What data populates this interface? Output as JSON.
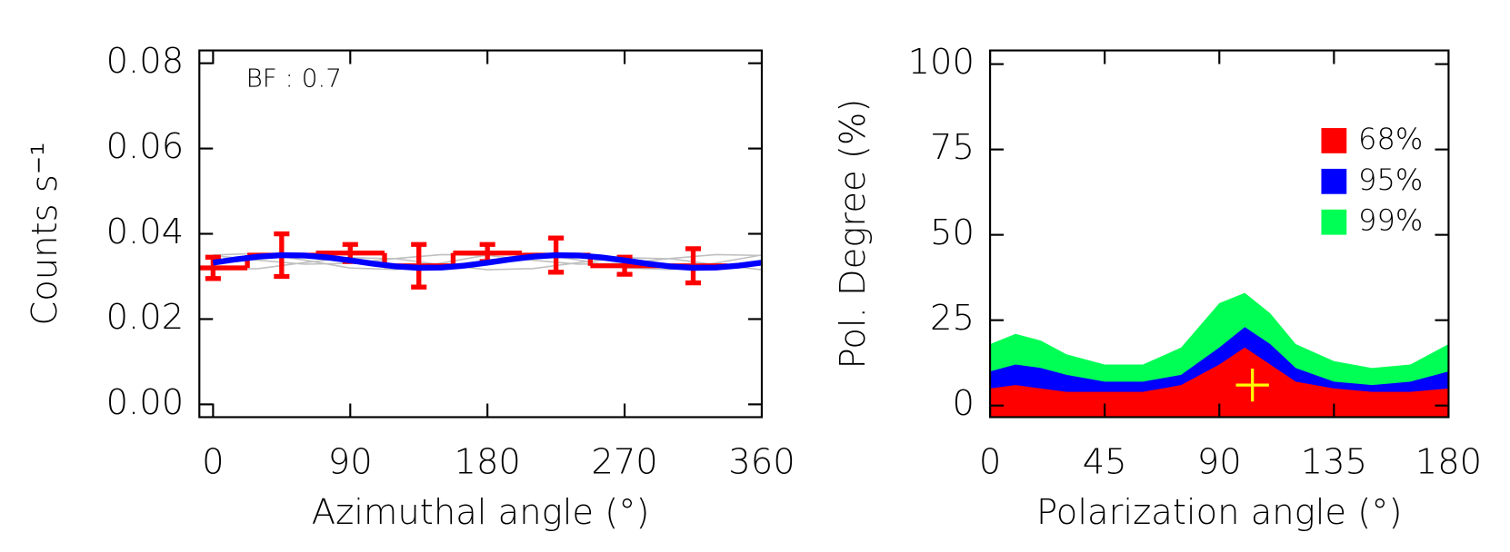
{
  "chart_data": [
    {
      "type": "step-errorbar",
      "xlabel": "Azimuthal angle (°)",
      "ylabel": "Counts s⁻¹",
      "annotation": "BF : 0.7",
      "xlim": [
        -9,
        360
      ],
      "xticks": [
        0,
        90,
        180,
        270,
        360
      ],
      "ylim": [
        -0.003,
        0.083
      ],
      "yticks": [
        {
          "value": 0,
          "label": "0.00"
        },
        {
          "value": 0.02,
          "label": "0.02"
        },
        {
          "value": 0.04,
          "label": "0.04"
        },
        {
          "value": 0.06,
          "label": "0.06"
        },
        {
          "value": 0.08,
          "label": "0.08"
        }
      ],
      "series": [
        {
          "type": "line",
          "color": "#c0c0c0",
          "x": [
            0,
            30,
            60,
            90,
            120,
            150,
            180,
            210,
            240,
            270,
            300,
            330,
            360
          ],
          "values": [
            0.03503,
            0.03538,
            0.03385,
            0.03197,
            0.03162,
            0.03315,
            0.03503,
            0.03538,
            0.03385,
            0.03197,
            0.03162,
            0.03315,
            0.03503
          ]
        },
        {
          "type": "line",
          "color": "#c0c0c0",
          "x": [
            0,
            30,
            60,
            90,
            120,
            150,
            180,
            210,
            240,
            270,
            300,
            330,
            360
          ],
          "values": [
            0.03159,
            0.03185,
            0.03326,
            0.03441,
            0.03415,
            0.03274,
            0.03159,
            0.03185,
            0.03326,
            0.03441,
            0.03415,
            0.03274,
            0.03159
          ]
        },
        {
          "type": "line",
          "color": "#c0c0c0",
          "x": [
            0,
            30,
            60,
            90,
            120,
            150,
            180,
            210,
            240,
            270,
            300,
            330,
            360
          ],
          "values": [
            0.03492,
            0.03379,
            0.03287,
            0.03308,
            0.03421,
            0.03513,
            0.03492,
            0.03379,
            0.03287,
            0.03308,
            0.03421,
            0.03513,
            0.03492
          ]
        },
        {
          "type": "step-errorbar",
          "color": "#ff0000",
          "x": [
            0,
            45,
            90,
            135,
            180,
            225,
            270,
            315
          ],
          "values": [
            0.032,
            0.035,
            0.0355,
            0.0325,
            0.0355,
            0.035,
            0.0325,
            0.0325
          ],
          "errors": [
            0.0025,
            0.005,
            0.002,
            0.005,
            0.002,
            0.004,
            0.002,
            0.004
          ]
        },
        {
          "type": "line",
          "color": "#0000ff",
          "x": [
            0,
            15,
            30,
            45,
            60,
            75,
            90,
            105,
            120,
            135,
            150,
            165,
            180,
            195,
            210,
            225,
            240,
            255,
            270,
            285,
            300,
            315,
            330,
            345,
            360
          ],
          "values": [
            0.03324,
            0.03401,
            0.03465,
            0.03498,
            0.03491,
            0.03446,
            0.03376,
            0.03299,
            0.03235,
            0.03202,
            0.03209,
            0.03254,
            0.03324,
            0.03401,
            0.03465,
            0.03498,
            0.03491,
            0.03446,
            0.03376,
            0.03299,
            0.03235,
            0.03202,
            0.03209,
            0.03254,
            0.03324
          ]
        }
      ]
    },
    {
      "type": "area",
      "xlabel": "Polarization angle (°)",
      "ylabel": "Pol. Degree (%)",
      "xlim": [
        0,
        180
      ],
      "xticks": [
        0,
        45,
        90,
        135,
        180
      ],
      "ylim": [
        -3.4,
        104
      ],
      "yticks": [
        0,
        25,
        50,
        75,
        100
      ],
      "legend": "upper right",
      "x": [
        0,
        10,
        20,
        30,
        45,
        60,
        75,
        90,
        100,
        110,
        120,
        135,
        150,
        165,
        180
      ],
      "series": [
        {
          "name": "68%",
          "color": "#ff0000",
          "values": [
            5,
            6,
            5,
            4,
            4,
            4,
            6,
            12,
            17,
            12,
            7,
            5,
            4,
            4,
            5
          ]
        },
        {
          "name": "95%",
          "color": "#0000ff",
          "values": [
            10,
            12,
            11,
            9,
            7,
            7,
            9,
            17,
            23,
            18,
            11,
            7,
            6,
            7,
            10
          ]
        },
        {
          "name": "99%",
          "color": "#00ff55",
          "values": [
            18,
            21,
            19,
            15,
            12,
            12,
            17,
            30,
            33,
            27,
            18,
            13,
            11,
            12,
            18
          ]
        }
      ],
      "marker": {
        "x": 103,
        "y": 6,
        "color": "#ffff00"
      }
    }
  ]
}
